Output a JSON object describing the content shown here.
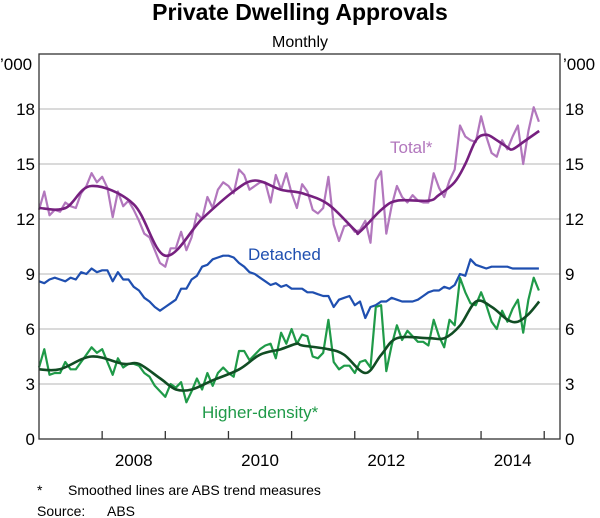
{
  "chart_data": {
    "type": "line",
    "title": "Private Dwelling Approvals",
    "subtitle": "Monthly",
    "ylabel_left": "’000",
    "ylabel_right": "’000",
    "ylim": [
      0,
      21
    ],
    "yticks": [
      "0",
      "3",
      "6",
      "9",
      "12",
      "15",
      "18"
    ],
    "xlim": [
      2007.0,
      2015.25
    ],
    "xtick_labels": [
      "2008",
      "2010",
      "2012",
      "2014"
    ],
    "grid": true,
    "start": "2007-01",
    "frequency": "monthly",
    "series": [
      {
        "name": "Total*",
        "label": "Total*",
        "kind": "raw",
        "color": "#b277bd",
        "values": [
          12.5,
          13.5,
          12.2,
          12.5,
          12.4,
          12.9,
          12.7,
          12.6,
          13.4,
          13.8,
          14.5,
          14.0,
          14.3,
          13.7,
          12.1,
          13.5,
          12.7,
          13.0,
          12.5,
          11.9,
          11.2,
          11.0,
          10.3,
          9.6,
          9.4,
          10.4,
          10.4,
          11.3,
          10.3,
          11.0,
          12.3,
          12.0,
          13.2,
          12.6,
          13.6,
          14.0,
          13.8,
          13.4,
          14.7,
          14.4,
          13.6,
          13.8,
          14.0,
          14.0,
          12.9,
          14.4,
          13.6,
          14.5,
          13.4,
          12.6,
          13.9,
          13.5,
          12.5,
          12.3,
          12.6,
          14.3,
          11.7,
          10.8,
          11.6,
          11.7,
          11.3,
          11.4,
          11.9,
          10.7,
          14.1,
          14.6,
          11.2,
          12.7,
          13.8,
          13.2,
          12.9,
          13.3,
          13.0,
          12.9,
          12.9,
          14.5,
          13.7,
          13.2,
          14.1,
          14.7,
          17.1,
          16.5,
          16.3,
          16.2,
          17.6,
          16.5,
          15.6,
          15.4,
          16.3,
          15.8,
          16.5,
          17.1,
          15.0,
          16.8,
          18.1,
          17.3
        ]
      },
      {
        "name": "Total trend",
        "kind": "trend",
        "color": "#76207f",
        "points": [
          [
            2007.0,
            12.6
          ],
          [
            2007.42,
            12.6
          ],
          [
            2007.83,
            13.8
          ],
          [
            2008.5,
            12.8
          ],
          [
            2009.0,
            10.0
          ],
          [
            2009.58,
            12.0
          ],
          [
            2010.08,
            13.5
          ],
          [
            2010.42,
            14.1
          ],
          [
            2010.83,
            13.6
          ],
          [
            2011.17,
            13.4
          ],
          [
            2011.58,
            12.8
          ],
          [
            2012.0,
            11.4
          ],
          [
            2012.08,
            11.3
          ],
          [
            2012.42,
            12.5
          ],
          [
            2012.67,
            13.0
          ],
          [
            2013.17,
            13.0
          ],
          [
            2013.33,
            13.3
          ],
          [
            2013.58,
            14.0
          ],
          [
            2013.75,
            15.0
          ],
          [
            2013.92,
            16.3
          ],
          [
            2014.08,
            16.6
          ],
          [
            2014.25,
            16.3
          ],
          [
            2014.42,
            15.9
          ],
          [
            2014.5,
            15.8
          ],
          [
            2014.67,
            16.2
          ],
          [
            2014.92,
            16.8
          ]
        ]
      },
      {
        "name": "Detached",
        "label": "Detached",
        "kind": "raw",
        "color": "#1f4fb0",
        "values": [
          8.6,
          8.5,
          8.7,
          8.8,
          8.7,
          8.6,
          8.8,
          8.7,
          9.1,
          9.0,
          9.3,
          9.1,
          9.2,
          9.2,
          8.6,
          9.1,
          8.7,
          8.7,
          8.3,
          8.1,
          7.7,
          7.5,
          7.2,
          7.0,
          7.2,
          7.4,
          7.6,
          8.2,
          8.2,
          8.7,
          8.9,
          9.4,
          9.5,
          9.8,
          9.9,
          10.0,
          10.0,
          9.9,
          9.6,
          9.4,
          9.1,
          9.0,
          8.8,
          8.6,
          8.4,
          8.5,
          8.3,
          8.4,
          8.2,
          8.2,
          8.2,
          8.0,
          8.0,
          7.9,
          7.8,
          7.8,
          7.2,
          7.6,
          7.7,
          7.8,
          7.3,
          7.5,
          6.6,
          7.2,
          7.3,
          7.5,
          7.5,
          7.7,
          7.6,
          7.5,
          7.5,
          7.5,
          7.6,
          7.8,
          8.0,
          8.1,
          8.1,
          8.3,
          8.2,
          8.4,
          9.0,
          8.9,
          9.8,
          9.5,
          9.4,
          9.3,
          9.4,
          9.4,
          9.4,
          9.4,
          9.3,
          9.3,
          9.3,
          9.3,
          9.3,
          9.3
        ]
      },
      {
        "name": "Higher-density*",
        "label": "Higher-density*",
        "kind": "raw",
        "color": "#1f9a48",
        "values": [
          3.9,
          4.9,
          3.5,
          3.6,
          3.6,
          4.2,
          3.8,
          3.8,
          4.2,
          4.6,
          5.0,
          4.7,
          4.9,
          4.2,
          3.5,
          4.4,
          3.9,
          4.1,
          4.1,
          4.0,
          3.6,
          3.4,
          2.9,
          2.6,
          2.3,
          3.0,
          2.8,
          3.1,
          2.0,
          2.6,
          3.3,
          2.7,
          3.6,
          2.9,
          3.6,
          3.9,
          3.6,
          3.4,
          4.8,
          4.8,
          4.3,
          4.6,
          4.9,
          5.1,
          5.2,
          4.4,
          5.8,
          5.2,
          6.0,
          5.2,
          5.7,
          5.6,
          4.5,
          4.4,
          4.7,
          6.5,
          4.2,
          3.8,
          4.0,
          4.0,
          3.6,
          4.2,
          4.3,
          3.9,
          7.2,
          7.3,
          3.7,
          5.1,
          6.2,
          5.4,
          5.9,
          5.6,
          5.3,
          5.3,
          5.1,
          6.5,
          5.6,
          5.0,
          6.5,
          6.2,
          8.8,
          8.0,
          7.4,
          7.3,
          8.0,
          7.3,
          6.4,
          6.0,
          7.0,
          6.4,
          7.1,
          7.6,
          5.8,
          7.6,
          8.8,
          8.1
        ]
      },
      {
        "name": "Higher-density trend",
        "kind": "trend",
        "color": "#114d24",
        "points": [
          [
            2007.0,
            3.8
          ],
          [
            2007.33,
            3.8
          ],
          [
            2007.83,
            4.5
          ],
          [
            2008.33,
            4.1
          ],
          [
            2008.58,
            4.1
          ],
          [
            2008.92,
            3.3
          ],
          [
            2009.17,
            2.7
          ],
          [
            2009.42,
            2.7
          ],
          [
            2009.75,
            3.2
          ],
          [
            2010.17,
            3.8
          ],
          [
            2010.5,
            4.6
          ],
          [
            2010.83,
            4.9
          ],
          [
            2011.08,
            5.2
          ],
          [
            2011.17,
            5.1
          ],
          [
            2011.58,
            4.9
          ],
          [
            2011.83,
            4.6
          ],
          [
            2012.17,
            3.6
          ],
          [
            2012.42,
            4.6
          ],
          [
            2012.67,
            5.5
          ],
          [
            2013.17,
            5.5
          ],
          [
            2013.42,
            5.5
          ],
          [
            2013.67,
            6.2
          ],
          [
            2013.92,
            7.5
          ],
          [
            2014.17,
            7.2
          ],
          [
            2014.42,
            6.5
          ],
          [
            2014.58,
            6.4
          ],
          [
            2014.75,
            6.8
          ],
          [
            2014.92,
            7.5
          ]
        ]
      }
    ],
    "footnote": {
      "marker": "*",
      "text": "Smoothed lines are ABS trend measures"
    },
    "source": {
      "label": "Source:",
      "text": "ABS"
    }
  }
}
